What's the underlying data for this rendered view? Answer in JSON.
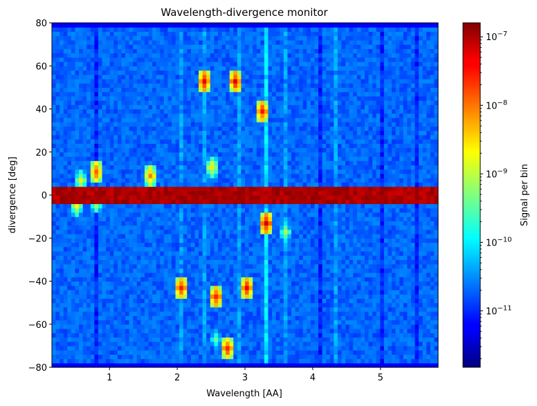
{
  "chart_data": {
    "type": "heatmap",
    "title": "Wavelength-divergence monitor",
    "xlabel": "Wavelength [AA]",
    "ylabel": "divergence [deg]",
    "xlim": [
      0.15,
      5.85
    ],
    "ylim": [
      -80,
      80
    ],
    "x_ticks": [
      1,
      2,
      3,
      4,
      5
    ],
    "y_ticks": [
      -80,
      -60,
      -40,
      -20,
      0,
      20,
      40,
      60,
      80
    ],
    "colorbar": {
      "label": "Signal per bin",
      "scale": "log",
      "range": [
        1.5e-12,
        1.6e-07
      ],
      "ticks": [
        {
          "value": 1e-07,
          "base": "10",
          "exp": "−7"
        },
        {
          "value": 1e-08,
          "base": "10",
          "exp": "−8"
        },
        {
          "value": 1e-09,
          "base": "10",
          "exp": "−9"
        },
        {
          "value": 1e-10,
          "base": "10",
          "exp": "−10"
        },
        {
          "value": 1e-11,
          "base": "10",
          "exp": "−11"
        }
      ],
      "colormap": "jet"
    },
    "grid_shape": {
      "nx": 100,
      "ny": 80
    },
    "background_level": 2e-11,
    "features": [
      {
        "kind": "horizontal_band",
        "divergence_range": [
          -2,
          2
        ],
        "level": 1.1e-07
      },
      {
        "kind": "vertical_line",
        "wavelength": 0.8,
        "level": 1e-11
      },
      {
        "kind": "vertical_line",
        "wavelength": 2.05,
        "level": 4e-11
      },
      {
        "kind": "vertical_line",
        "wavelength": 2.4,
        "level": 4e-11
      },
      {
        "kind": "vertical_line",
        "wavelength": 2.9,
        "level": 4e-11
      },
      {
        "kind": "vertical_line",
        "wavelength": 3.6,
        "level": 4e-11
      },
      {
        "kind": "vertical_line",
        "wavelength": 4.1,
        "level": 1e-11
      },
      {
        "kind": "vertical_line",
        "wavelength": 4.35,
        "level": 4e-11
      },
      {
        "kind": "vertical_line",
        "wavelength": 5.05,
        "level": 1e-11
      },
      {
        "kind": "vertical_line",
        "wavelength": 5.55,
        "level": 1e-11
      },
      {
        "kind": "vertical_line",
        "wavelength": 3.3,
        "level": 1e-10
      },
      {
        "kind": "hot_spot",
        "wavelength": 2.42,
        "divergence": 53,
        "level": 5e-08
      },
      {
        "kind": "hot_spot",
        "wavelength": 2.88,
        "divergence": 53,
        "level": 5e-08
      },
      {
        "kind": "hot_spot",
        "wavelength": 3.25,
        "divergence": 39,
        "level": 4e-08
      },
      {
        "kind": "hot_spot",
        "wavelength": 0.82,
        "divergence": 10,
        "level": 2e-08
      },
      {
        "kind": "hot_spot",
        "wavelength": 0.55,
        "divergence": 7,
        "level": 2e-09
      },
      {
        "kind": "hot_spot",
        "wavelength": 1.6,
        "divergence": 8,
        "level": 1e-08
      },
      {
        "kind": "hot_spot",
        "wavelength": 2.5,
        "divergence": 12,
        "level": 3e-09
      },
      {
        "kind": "hot_spot",
        "wavelength": 0.5,
        "divergence": -5,
        "level": 2e-09
      },
      {
        "kind": "hot_spot",
        "wavelength": 0.8,
        "divergence": -4,
        "level": 2e-09
      },
      {
        "kind": "hot_spot",
        "wavelength": 3.3,
        "divergence": -14,
        "level": 6e-08
      },
      {
        "kind": "hot_spot",
        "wavelength": 3.6,
        "divergence": -18,
        "level": 1e-09
      },
      {
        "kind": "hot_spot",
        "wavelength": 2.05,
        "divergence": -44,
        "level": 4e-08
      },
      {
        "kind": "hot_spot",
        "wavelength": 2.6,
        "divergence": -47,
        "level": 4e-08
      },
      {
        "kind": "hot_spot",
        "wavelength": 3.05,
        "divergence": -43,
        "level": 4e-08
      },
      {
        "kind": "hot_spot",
        "wavelength": 2.75,
        "divergence": -72,
        "level": 3e-08
      },
      {
        "kind": "hot_spot",
        "wavelength": 2.55,
        "divergence": -67,
        "level": 5e-10
      }
    ]
  }
}
